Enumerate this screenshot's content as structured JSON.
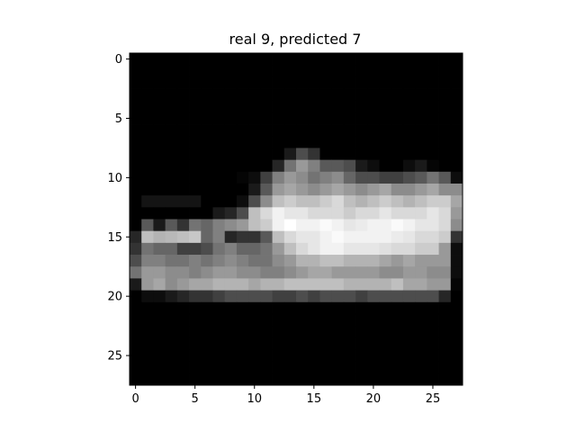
{
  "chart_data": {
    "type": "heatmap",
    "title": "real 9, predicted 7",
    "xlabel": "",
    "ylabel": "",
    "colormap": "gray",
    "value_range": [
      0,
      1
    ],
    "xlim": [
      -0.5,
      27.5
    ],
    "ylim": [
      27.5,
      -0.5
    ],
    "x_ticks": [
      0,
      5,
      10,
      15,
      20,
      25
    ],
    "y_ticks": [
      0,
      5,
      10,
      15,
      20,
      25
    ],
    "grid": false,
    "rows": 28,
    "cols": 28,
    "pixels": [
      [
        0,
        0,
        0,
        0,
        0,
        0,
        0,
        0,
        0,
        0,
        0,
        0,
        0,
        0,
        0,
        0,
        0,
        0,
        0,
        0,
        0,
        0,
        0,
        0,
        0,
        0,
        0,
        0
      ],
      [
        0,
        0,
        0,
        0,
        0,
        0,
        0,
        0,
        0,
        0,
        0,
        0,
        0,
        0,
        0,
        0,
        0,
        0,
        0,
        0,
        0,
        0,
        0,
        0,
        0,
        0,
        0,
        0
      ],
      [
        0,
        0,
        0,
        0,
        0,
        0,
        0,
        0,
        0,
        0,
        0,
        0,
        0,
        0,
        0,
        0,
        0,
        0,
        0,
        0,
        0,
        0,
        0,
        0,
        0,
        0,
        0,
        0
      ],
      [
        0,
        0,
        0,
        0,
        0,
        0,
        0,
        0,
        0,
        0,
        0,
        0,
        0,
        0,
        0,
        0,
        0,
        0,
        0,
        0,
        0,
        0,
        0,
        0,
        0,
        0,
        0,
        0
      ],
      [
        0,
        0,
        0,
        0,
        0,
        0,
        0,
        0,
        0,
        0,
        0,
        0,
        0,
        0,
        0,
        0,
        0,
        0,
        0,
        0,
        0,
        0,
        0,
        0,
        0,
        0,
        0,
        0
      ],
      [
        0,
        0,
        0,
        0,
        0,
        0,
        0,
        0,
        0,
        0,
        0,
        0,
        0,
        0,
        0,
        0,
        0,
        0,
        0,
        0,
        0,
        0,
        0,
        0,
        0,
        0,
        0,
        0
      ],
      [
        0,
        0,
        0,
        0,
        0,
        0,
        0,
        0,
        0,
        0,
        0,
        0,
        0,
        0,
        0,
        0,
        0,
        0,
        0,
        0,
        0,
        0,
        0,
        0,
        0,
        0,
        0,
        0
      ],
      [
        0,
        0,
        0,
        0,
        0,
        0,
        0,
        0,
        0,
        0,
        0,
        0,
        0,
        0,
        0,
        0,
        0,
        0,
        0,
        0,
        0,
        0,
        0,
        0,
        0,
        0,
        0,
        0
      ],
      [
        0,
        0,
        0,
        0,
        0,
        0,
        0,
        0,
        0,
        0,
        0,
        0,
        0,
        0.1,
        0.3,
        0.2,
        0,
        0,
        0,
        0,
        0,
        0,
        0,
        0,
        0,
        0,
        0,
        0
      ],
      [
        0,
        0,
        0,
        0,
        0,
        0,
        0,
        0,
        0,
        0,
        0,
        0,
        0.15,
        0.45,
        0.6,
        0.5,
        0.35,
        0.35,
        0.3,
        0.1,
        0.05,
        0,
        0,
        0.05,
        0.1,
        0.02,
        0,
        0
      ],
      [
        0,
        0,
        0,
        0,
        0,
        0,
        0,
        0,
        0,
        0.02,
        0.05,
        0.25,
        0.5,
        0.6,
        0.55,
        0.45,
        0.5,
        0.55,
        0.4,
        0.3,
        0.3,
        0.25,
        0.25,
        0.3,
        0.35,
        0.45,
        0.35,
        0.05
      ],
      [
        0,
        0,
        0,
        0,
        0,
        0,
        0,
        0,
        0,
        0,
        0.1,
        0.35,
        0.6,
        0.65,
        0.6,
        0.55,
        0.6,
        0.65,
        0.6,
        0.55,
        0.6,
        0.65,
        0.55,
        0.55,
        0.6,
        0.65,
        0.55,
        0.55
      ],
      [
        0,
        0.08,
        0.08,
        0.08,
        0.08,
        0.08,
        0,
        0,
        0,
        0.05,
        0.3,
        0.55,
        0.75,
        0.8,
        0.75,
        0.75,
        0.8,
        0.85,
        0.75,
        0.7,
        0.75,
        0.8,
        0.75,
        0.7,
        0.75,
        0.8,
        0.8,
        0.65
      ],
      [
        0,
        0,
        0,
        0,
        0,
        0,
        0,
        0.1,
        0.15,
        0.3,
        0.75,
        0.85,
        0.95,
        0.9,
        0.9,
        0.85,
        0.85,
        0.85,
        0.8,
        0.85,
        0.85,
        0.9,
        0.85,
        0.85,
        0.85,
        0.9,
        0.85,
        0.6
      ],
      [
        0,
        0.35,
        0.1,
        0.35,
        0.2,
        0.45,
        0.4,
        0.5,
        0.55,
        0.6,
        0.75,
        0.8,
        0.95,
        1,
        0.95,
        0.95,
        0.98,
        0.95,
        0.9,
        0.92,
        0.95,
        0.95,
        0.98,
        0.95,
        0.9,
        0.9,
        0.85,
        0.55
      ],
      [
        0.15,
        0.75,
        0.7,
        0.72,
        0.75,
        0.78,
        0.4,
        0.5,
        0.15,
        0.2,
        0.2,
        0.35,
        0.75,
        0.85,
        0.9,
        0.9,
        0.95,
        0.98,
        0.95,
        0.95,
        0.95,
        0.95,
        0.92,
        0.9,
        0.85,
        0.85,
        0.8,
        0.2
      ],
      [
        0.2,
        0.45,
        0.4,
        0.4,
        0.25,
        0.25,
        0.3,
        0.45,
        0.5,
        0.4,
        0.4,
        0.45,
        0.6,
        0.75,
        0.85,
        0.9,
        0.95,
        0.95,
        0.9,
        0.9,
        0.9,
        0.88,
        0.85,
        0.85,
        0.8,
        0.8,
        0.6,
        0.05
      ],
      [
        0.3,
        0.5,
        0.5,
        0.45,
        0.45,
        0.5,
        0.45,
        0.5,
        0.55,
        0.5,
        0.45,
        0.45,
        0.55,
        0.6,
        0.7,
        0.7,
        0.75,
        0.75,
        0.7,
        0.7,
        0.7,
        0.65,
        0.6,
        0.65,
        0.6,
        0.6,
        0.6,
        0.05
      ],
      [
        0.45,
        0.6,
        0.6,
        0.55,
        0.55,
        0.5,
        0.55,
        0.6,
        0.6,
        0.55,
        0.55,
        0.5,
        0.5,
        0.55,
        0.6,
        0.65,
        0.65,
        0.6,
        0.6,
        0.6,
        0.6,
        0.55,
        0.55,
        0.6,
        0.6,
        0.55,
        0.55,
        0.05
      ],
      [
        0.1,
        0.6,
        0.65,
        0.55,
        0.6,
        0.65,
        0.65,
        0.7,
        0.7,
        0.7,
        0.65,
        0.7,
        0.7,
        0.75,
        0.75,
        0.75,
        0.75,
        0.75,
        0.7,
        0.7,
        0.7,
        0.7,
        0.75,
        0.65,
        0.65,
        0.6,
        0.6,
        0.02
      ],
      [
        0,
        0.05,
        0.05,
        0.1,
        0.15,
        0.2,
        0.2,
        0.25,
        0.3,
        0.3,
        0.3,
        0.3,
        0.25,
        0.25,
        0.3,
        0.25,
        0.3,
        0.3,
        0.3,
        0.25,
        0.3,
        0.3,
        0.3,
        0.3,
        0.3,
        0.3,
        0.15,
        0
      ],
      [
        0,
        0,
        0,
        0,
        0,
        0,
        0,
        0,
        0,
        0,
        0,
        0,
        0,
        0,
        0,
        0,
        0,
        0,
        0,
        0,
        0,
        0,
        0,
        0,
        0,
        0,
        0,
        0
      ],
      [
        0,
        0,
        0,
        0,
        0,
        0,
        0,
        0,
        0,
        0,
        0,
        0,
        0,
        0,
        0,
        0,
        0,
        0,
        0,
        0,
        0,
        0,
        0,
        0,
        0,
        0,
        0,
        0
      ],
      [
        0,
        0,
        0,
        0,
        0,
        0,
        0,
        0,
        0,
        0,
        0,
        0,
        0,
        0,
        0,
        0,
        0,
        0,
        0,
        0,
        0,
        0,
        0,
        0,
        0,
        0,
        0,
        0
      ],
      [
        0,
        0,
        0,
        0,
        0,
        0,
        0,
        0,
        0,
        0,
        0,
        0,
        0,
        0,
        0,
        0,
        0,
        0,
        0,
        0,
        0,
        0,
        0,
        0,
        0,
        0,
        0,
        0
      ],
      [
        0,
        0,
        0,
        0,
        0,
        0,
        0,
        0,
        0,
        0,
        0,
        0,
        0,
        0,
        0,
        0,
        0,
        0,
        0,
        0,
        0,
        0,
        0,
        0,
        0,
        0,
        0,
        0
      ],
      [
        0,
        0,
        0,
        0,
        0,
        0,
        0,
        0,
        0,
        0,
        0,
        0,
        0,
        0,
        0,
        0,
        0,
        0,
        0,
        0,
        0,
        0,
        0,
        0,
        0,
        0,
        0,
        0
      ],
      [
        0,
        0,
        0,
        0,
        0,
        0,
        0,
        0,
        0,
        0,
        0,
        0,
        0,
        0,
        0,
        0,
        0,
        0,
        0,
        0,
        0,
        0,
        0,
        0,
        0,
        0,
        0,
        0
      ]
    ]
  }
}
